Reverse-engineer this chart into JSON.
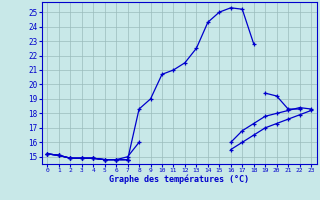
{
  "xlabel": "Graphe des températures (°C)",
  "xlim": [
    -0.5,
    23.5
  ],
  "ylim": [
    14.5,
    25.7
  ],
  "background_color": "#c8e8e8",
  "grid_color": "#9bbcbc",
  "line_color": "#0000cc",
  "line_width": 0.9,
  "marker": "+",
  "marker_size": 3.5,
  "marker_ew": 0.9,
  "xticks": [
    0,
    1,
    2,
    3,
    4,
    5,
    6,
    7,
    8,
    9,
    10,
    11,
    12,
    13,
    14,
    15,
    16,
    17,
    18,
    19,
    20,
    21,
    22,
    23
  ],
  "yticks": [
    15,
    16,
    17,
    18,
    19,
    20,
    21,
    22,
    23,
    24,
    25
  ],
  "series": [
    [
      15.2,
      15.1,
      14.9,
      14.9,
      14.9,
      14.8,
      14.8,
      14.8,
      18.3,
      19.0,
      20.7,
      21.0,
      21.5,
      22.5,
      24.3,
      25.0,
      25.3,
      25.2,
      22.8,
      null,
      null,
      null,
      null,
      null
    ],
    [
      15.2,
      15.1,
      14.9,
      14.9,
      14.9,
      14.8,
      14.8,
      15.0,
      16.0,
      null,
      null,
      null,
      null,
      null,
      null,
      null,
      null,
      null,
      null,
      19.4,
      19.2,
      18.3,
      18.3,
      null
    ],
    [
      15.2,
      15.1,
      14.9,
      14.9,
      14.9,
      14.8,
      14.8,
      14.8,
      null,
      null,
      null,
      null,
      null,
      null,
      null,
      null,
      16.0,
      16.8,
      17.3,
      17.8,
      18.0,
      18.2,
      18.4,
      18.3
    ],
    [
      15.2,
      15.1,
      14.9,
      14.9,
      14.9,
      14.8,
      14.8,
      14.8,
      null,
      null,
      null,
      null,
      null,
      null,
      null,
      null,
      15.5,
      16.0,
      16.5,
      17.0,
      17.3,
      17.6,
      17.9,
      18.2
    ]
  ]
}
